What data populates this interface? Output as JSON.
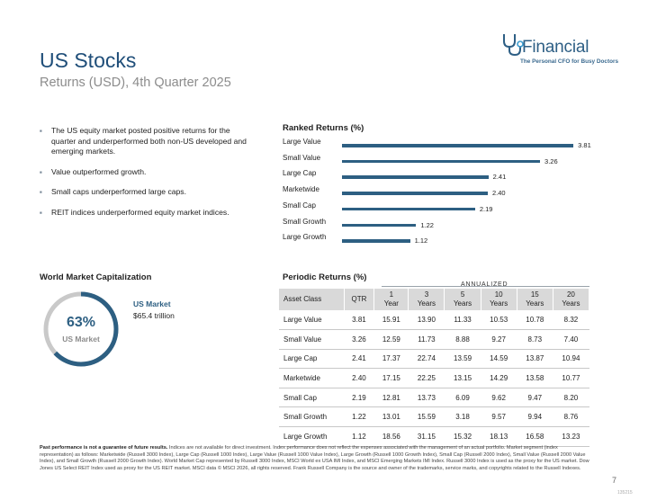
{
  "header": {
    "title": "US Stocks",
    "subtitle": "Returns (USD), 4th Quarter 2025"
  },
  "logo": {
    "wordmark": "Financial",
    "tagline": "The Personal CFO for Busy Doctors",
    "color": "#2e5f85"
  },
  "bullets": [
    "The US equity market posted positive returns for the quarter and underperformed both non-US developed and emerging markets.",
    "Value outperformed growth.",
    "Small caps underperformed large caps.",
    "REIT indices underperformed equity market indices."
  ],
  "ranked": {
    "title": "Ranked Returns (%)",
    "bar_color": "#2d5f82"
  },
  "chart_data": {
    "type": "bar",
    "orientation": "horizontal",
    "title": "Ranked Returns (%)",
    "categories": [
      "Large Value",
      "Small Value",
      "Large Cap",
      "Marketwide",
      "Small Cap",
      "Small Growth",
      "Large Growth"
    ],
    "values": [
      3.81,
      3.26,
      2.41,
      2.4,
      2.19,
      1.22,
      1.12
    ],
    "value_labels": [
      "3.81",
      "3.26",
      "2.41",
      "2.40",
      "2.19",
      "1.22",
      "1.12"
    ],
    "xlim": [
      0,
      4.0
    ],
    "grid": false
  },
  "world_cap": {
    "title": "World Market Capitalization",
    "percent_value": 63,
    "percent_text": "63%",
    "center_label": "US Market",
    "legend_title": "US Market",
    "legend_value": "$65.4 trillion",
    "fill_color": "#2d5f82",
    "track_color": "#c9c9c9"
  },
  "periodic": {
    "title": "Periodic Returns (%)",
    "annualized_label": "ANNUALIZED",
    "columns": [
      {
        "line1": "Asset Class",
        "line2": ""
      },
      {
        "line1": "QTR",
        "line2": ""
      },
      {
        "line1": "1",
        "line2": "Year"
      },
      {
        "line1": "3",
        "line2": "Years"
      },
      {
        "line1": "5",
        "line2": "Years"
      },
      {
        "line1": "10",
        "line2": "Years"
      },
      {
        "line1": "15",
        "line2": "Years"
      },
      {
        "line1": "20",
        "line2": "Years"
      }
    ],
    "rows": [
      [
        "Large Value",
        "3.81",
        "15.91",
        "13.90",
        "11.33",
        "10.53",
        "10.78",
        "8.32"
      ],
      [
        "Small Value",
        "3.26",
        "12.59",
        "11.73",
        "8.88",
        "9.27",
        "8.73",
        "7.40"
      ],
      [
        "Large Cap",
        "2.41",
        "17.37",
        "22.74",
        "13.59",
        "14.59",
        "13.87",
        "10.94"
      ],
      [
        "Marketwide",
        "2.40",
        "17.15",
        "22.25",
        "13.15",
        "14.29",
        "13.58",
        "10.77"
      ],
      [
        "Small Cap",
        "2.19",
        "12.81",
        "13.73",
        "6.09",
        "9.62",
        "9.47",
        "8.20"
      ],
      [
        "Small Growth",
        "1.22",
        "13.01",
        "15.59",
        "3.18",
        "9.57",
        "9.94",
        "8.76"
      ],
      [
        "Large Growth",
        "1.12",
        "18.56",
        "31.15",
        "15.32",
        "18.13",
        "16.58",
        "13.23"
      ]
    ]
  },
  "footnote": {
    "bold": "Past performance is not a guarantee of future results.",
    "text": " Indices are not available for direct investment. Index performance does not reflect the expenses associated with the management of an actual portfolio. Market segment (index representation) as follows: Marketwide (Russell 3000 Index), Large Cap (Russell 1000 Index), Large Value (Russell 1000 Value Index), Large Growth (Russell 1000 Growth Index), Small Cap (Russell 2000 Index), Small Value (Russell 2000 Value Index), and Small Growth (Russell 2000 Growth Index). World Market Cap represented by Russell 3000 Index, MSCI World ex USA IMI Index, and MSCI Emerging Markets IMI Index. Russell 3000 Index is used as the proxy for the US market. Dow Jones US Select REIT Index used as proxy for the US REIT market. MSCI data © MSCI 2026, all rights reserved. Frank Russell Company is the source and owner of the trademarks, service marks, and copyrights related to the Russell Indexes."
  },
  "page": {
    "number": "7",
    "doc_id": "135215"
  }
}
